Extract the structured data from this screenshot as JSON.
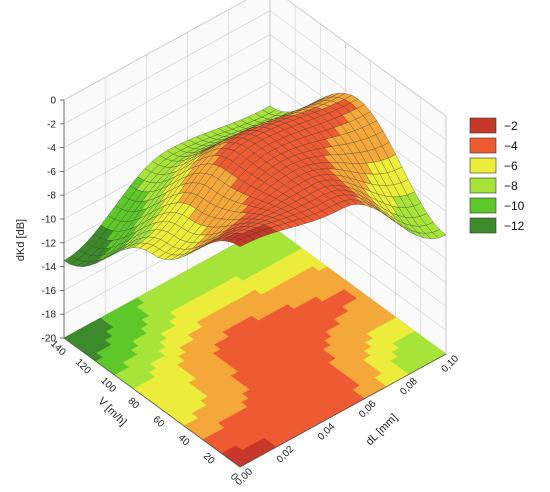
{
  "chart_data": {
    "type": "surface3d",
    "title": "",
    "zlabel": "dKd [dB]",
    "xlabel": "dL [mm]",
    "ylabel": "V [m/h]",
    "z_ticks": [
      "0",
      "-2",
      "-4",
      "-6",
      "-8",
      "-10",
      "-12",
      "-14",
      "-16",
      "-18",
      "-20"
    ],
    "zlim": [
      -20,
      0
    ],
    "x_ticks": [
      "0,00",
      "0,02",
      "0,04",
      "0,06",
      "0,08",
      "0,10"
    ],
    "xlim": [
      0,
      0.1
    ],
    "y_ticks": [
      "0",
      "20",
      "40",
      "60",
      "80",
      "100",
      "120",
      "140"
    ],
    "ylim": [
      0,
      140
    ],
    "grid": true,
    "surface_samples": {
      "x": [
        0,
        0.05,
        0.1
      ],
      "y": [
        0,
        70,
        140
      ],
      "z": [
        [
          -1.5,
          -7.5,
          -13.5
        ],
        [
          -3.0,
          -3.0,
          -9.0
        ],
        [
          -10.0,
          -4.0,
          -10.0
        ]
      ]
    },
    "legend": {
      "position": "right",
      "entries": [
        {
          "label": "−2",
          "color": "#c8382a"
        },
        {
          "label": "−4",
          "color": "#ee5a32"
        },
        {
          "label": "−6",
          "color": "#ecec3a"
        },
        {
          "label": "−8",
          "color": "#a6e43a"
        },
        {
          "label": "−10",
          "color": "#5ec82a"
        },
        {
          "label": "−12",
          "color": "#3c8a2a"
        }
      ]
    }
  }
}
